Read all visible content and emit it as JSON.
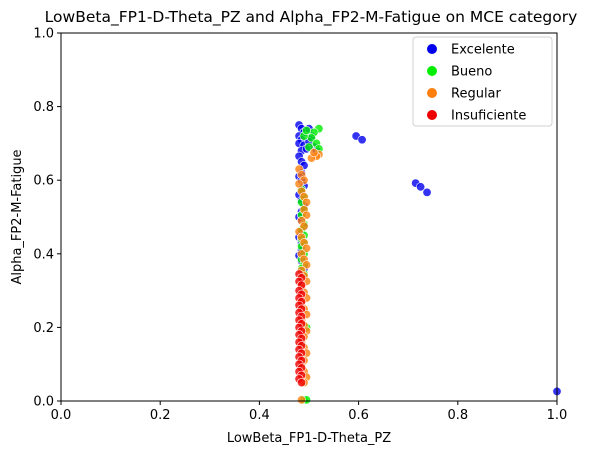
{
  "chart_data": {
    "type": "scatter",
    "title": "LowBeta_FP1-D-Theta_PZ and Alpha_FP2-M-Fatigue on MCE category",
    "xlabel": "LowBeta_FP1-D-Theta_PZ",
    "ylabel": "Alpha_FP2-M-Fatigue",
    "xlim": [
      0,
      1
    ],
    "ylim": [
      0,
      1
    ],
    "xticks": [
      "0.0",
      "0.2",
      "0.4",
      "0.6",
      "0.8",
      "1.0"
    ],
    "yticks": [
      "0.0",
      "0.2",
      "0.4",
      "0.6",
      "0.8",
      "1.0"
    ],
    "legend_position": "top-right",
    "grid": false,
    "series": [
      {
        "name": "Excelente",
        "color": "#0000ee",
        "points": [
          [
            0.48,
            0.75
          ],
          [
            0.485,
            0.74
          ],
          [
            0.49,
            0.73
          ],
          [
            0.48,
            0.72
          ],
          [
            0.485,
            0.71
          ],
          [
            0.48,
            0.7
          ],
          [
            0.49,
            0.695
          ],
          [
            0.485,
            0.68
          ],
          [
            0.48,
            0.665
          ],
          [
            0.485,
            0.65
          ],
          [
            0.49,
            0.64
          ],
          [
            0.485,
            0.62
          ],
          [
            0.48,
            0.61
          ],
          [
            0.485,
            0.6
          ],
          [
            0.49,
            0.585
          ],
          [
            0.485,
            0.575
          ],
          [
            0.48,
            0.56
          ],
          [
            0.485,
            0.545
          ],
          [
            0.49,
            0.53
          ],
          [
            0.485,
            0.515
          ],
          [
            0.48,
            0.5
          ],
          [
            0.485,
            0.49
          ],
          [
            0.49,
            0.475
          ],
          [
            0.485,
            0.46
          ],
          [
            0.48,
            0.445
          ],
          [
            0.485,
            0.43
          ],
          [
            0.485,
            0.41
          ],
          [
            0.48,
            0.395
          ],
          [
            0.485,
            0.38
          ],
          [
            0.49,
            0.36
          ],
          [
            0.5,
            0.74
          ],
          [
            0.505,
            0.72
          ],
          [
            0.51,
            0.69
          ],
          [
            0.515,
            0.68
          ],
          [
            0.5,
            0.705
          ],
          [
            0.495,
            0.685
          ],
          [
            0.595,
            0.72
          ],
          [
            0.607,
            0.71
          ],
          [
            0.715,
            0.592
          ],
          [
            0.725,
            0.582
          ],
          [
            0.738,
            0.567
          ],
          [
            1.0,
            0.026
          ]
        ]
      },
      {
        "name": "Bueno",
        "color": "#00ee00",
        "points": [
          [
            0.52,
            0.74
          ],
          [
            0.51,
            0.73
          ],
          [
            0.505,
            0.715
          ],
          [
            0.515,
            0.7
          ],
          [
            0.5,
            0.69
          ],
          [
            0.49,
            0.72
          ],
          [
            0.495,
            0.735
          ],
          [
            0.52,
            0.685
          ],
          [
            0.485,
            0.575
          ],
          [
            0.49,
            0.555
          ],
          [
            0.485,
            0.54
          ],
          [
            0.49,
            0.52
          ],
          [
            0.485,
            0.505
          ],
          [
            0.49,
            0.48
          ],
          [
            0.485,
            0.465
          ],
          [
            0.49,
            0.45
          ],
          [
            0.485,
            0.44
          ],
          [
            0.49,
            0.43
          ],
          [
            0.485,
            0.42
          ],
          [
            0.49,
            0.4
          ],
          [
            0.485,
            0.385
          ],
          [
            0.49,
            0.37
          ],
          [
            0.485,
            0.36
          ],
          [
            0.49,
            0.345
          ],
          [
            0.495,
            0.2
          ],
          [
            0.49,
            0.003
          ],
          [
            0.495,
            0.003
          ]
        ]
      },
      {
        "name": "Regular",
        "color": "#ff7f0e",
        "points": [
          [
            0.52,
            0.67
          ],
          [
            0.515,
            0.665
          ],
          [
            0.505,
            0.66
          ],
          [
            0.51,
            0.675
          ],
          [
            0.48,
            0.63
          ],
          [
            0.485,
            0.615
          ],
          [
            0.49,
            0.6
          ],
          [
            0.48,
            0.59
          ],
          [
            0.485,
            0.57
          ],
          [
            0.49,
            0.555
          ],
          [
            0.495,
            0.54
          ],
          [
            0.49,
            0.52
          ],
          [
            0.495,
            0.505
          ],
          [
            0.485,
            0.49
          ],
          [
            0.49,
            0.475
          ],
          [
            0.48,
            0.46
          ],
          [
            0.485,
            0.445
          ],
          [
            0.49,
            0.43
          ],
          [
            0.495,
            0.415
          ],
          [
            0.485,
            0.4
          ],
          [
            0.49,
            0.385
          ],
          [
            0.495,
            0.37
          ],
          [
            0.485,
            0.355
          ],
          [
            0.49,
            0.34
          ],
          [
            0.495,
            0.325
          ],
          [
            0.485,
            0.31
          ],
          [
            0.49,
            0.295
          ],
          [
            0.495,
            0.28
          ],
          [
            0.485,
            0.265
          ],
          [
            0.49,
            0.25
          ],
          [
            0.495,
            0.235
          ],
          [
            0.485,
            0.22
          ],
          [
            0.49,
            0.205
          ],
          [
            0.495,
            0.19
          ],
          [
            0.49,
            0.175
          ],
          [
            0.485,
            0.16
          ],
          [
            0.49,
            0.145
          ],
          [
            0.495,
            0.13
          ],
          [
            0.49,
            0.11
          ],
          [
            0.485,
            0.095
          ],
          [
            0.49,
            0.08
          ],
          [
            0.495,
            0.065
          ],
          [
            0.49,
            0.05
          ],
          [
            0.485,
            0.003
          ]
        ]
      },
      {
        "name": "Insuficiente",
        "color": "#ee0000",
        "points": [
          [
            0.48,
            0.345
          ],
          [
            0.485,
            0.335
          ],
          [
            0.48,
            0.325
          ],
          [
            0.485,
            0.315
          ],
          [
            0.48,
            0.3
          ],
          [
            0.485,
            0.29
          ],
          [
            0.48,
            0.28
          ],
          [
            0.485,
            0.27
          ],
          [
            0.48,
            0.26
          ],
          [
            0.485,
            0.25
          ],
          [
            0.48,
            0.24
          ],
          [
            0.485,
            0.23
          ],
          [
            0.48,
            0.22
          ],
          [
            0.485,
            0.21
          ],
          [
            0.48,
            0.2
          ],
          [
            0.485,
            0.19
          ],
          [
            0.48,
            0.18
          ],
          [
            0.485,
            0.17
          ],
          [
            0.48,
            0.16
          ],
          [
            0.485,
            0.15
          ],
          [
            0.48,
            0.14
          ],
          [
            0.485,
            0.13
          ],
          [
            0.48,
            0.12
          ],
          [
            0.485,
            0.11
          ],
          [
            0.48,
            0.1
          ],
          [
            0.485,
            0.09
          ],
          [
            0.48,
            0.08
          ],
          [
            0.485,
            0.07
          ],
          [
            0.48,
            0.06
          ],
          [
            0.485,
            0.05
          ]
        ]
      }
    ]
  }
}
